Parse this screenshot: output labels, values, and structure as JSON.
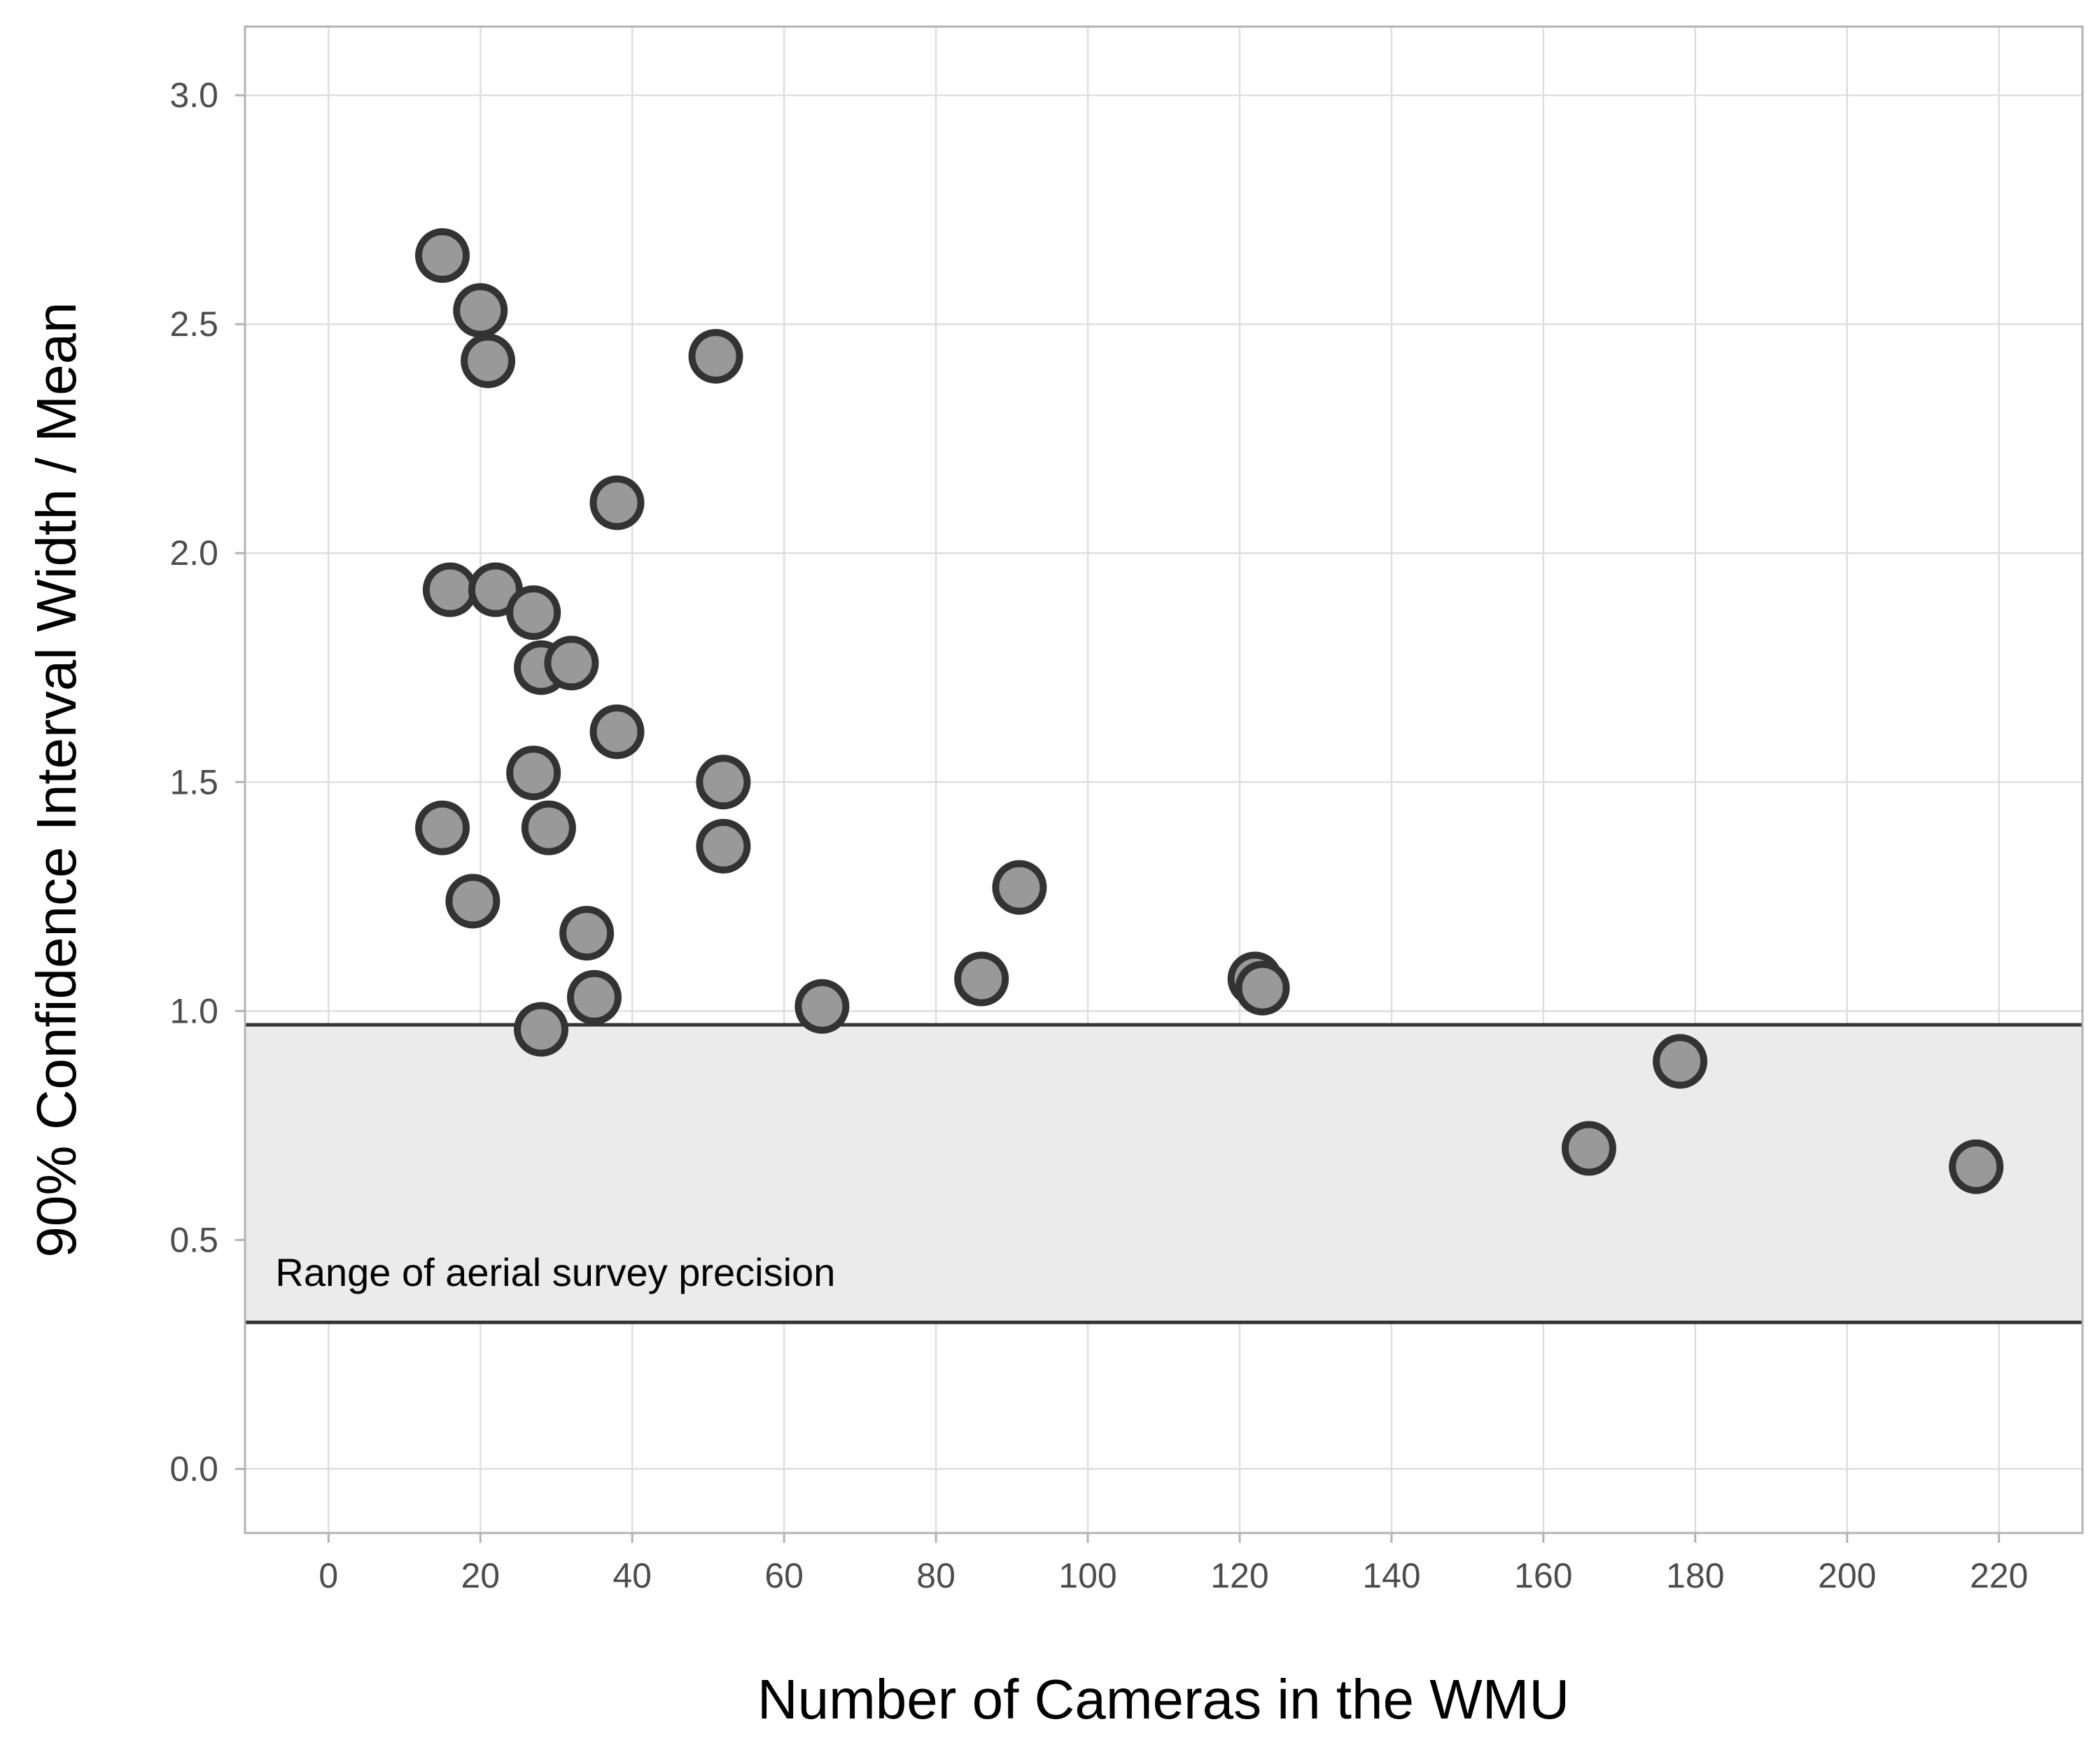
{
  "chart_data": {
    "type": "scatter",
    "xlabel": "Number of Cameras in the WMU",
    "ylabel": "90% Confidence Interval Width / Mean",
    "xlim": [
      -11,
      231
    ],
    "ylim": [
      -0.14,
      3.15
    ],
    "x_ticks": [
      0,
      20,
      40,
      60,
      80,
      100,
      120,
      140,
      160,
      180,
      200,
      220
    ],
    "x_tick_labels": [
      "0",
      "20",
      "40",
      "60",
      "80",
      "100",
      "120",
      "140",
      "160",
      "180",
      "200",
      "220"
    ],
    "y_ticks": [
      0,
      0.5,
      1,
      1.5,
      2,
      2.5,
      3
    ],
    "y_tick_labels": [
      "0.0",
      "0.5",
      "1.0",
      "1.5",
      "2.0",
      "2.5",
      "3.0"
    ],
    "grid": true,
    "band": {
      "label": "Range of aerial survey precision",
      "ymin": 0.32,
      "ymax": 0.97,
      "color": "#ebebeb"
    },
    "colors": {
      "point_fill": "#999999",
      "point_stroke": "#333333",
      "panel_border": "#b3b3b3",
      "grid": "#dedede"
    },
    "points": [
      {
        "x": 15,
        "y": 2.65
      },
      {
        "x": 20,
        "y": 2.53
      },
      {
        "x": 21,
        "y": 2.42
      },
      {
        "x": 51,
        "y": 2.43
      },
      {
        "x": 38,
        "y": 2.11
      },
      {
        "x": 16,
        "y": 1.92
      },
      {
        "x": 22,
        "y": 1.92
      },
      {
        "x": 27,
        "y": 1.87
      },
      {
        "x": 28,
        "y": 1.75
      },
      {
        "x": 32,
        "y": 1.76
      },
      {
        "x": 38,
        "y": 1.61
      },
      {
        "x": 27,
        "y": 1.52
      },
      {
        "x": 52,
        "y": 1.5
      },
      {
        "x": 15,
        "y": 1.4
      },
      {
        "x": 29,
        "y": 1.4
      },
      {
        "x": 52,
        "y": 1.36
      },
      {
        "x": 19,
        "y": 1.24
      },
      {
        "x": 34,
        "y": 1.17
      },
      {
        "x": 35,
        "y": 1.03
      },
      {
        "x": 28,
        "y": 0.96
      },
      {
        "x": 65,
        "y": 1.01
      },
      {
        "x": 86,
        "y": 1.07
      },
      {
        "x": 91,
        "y": 1.27
      },
      {
        "x": 122,
        "y": 1.07
      },
      {
        "x": 123,
        "y": 1.05
      },
      {
        "x": 166,
        "y": 0.7
      },
      {
        "x": 178,
        "y": 0.89
      },
      {
        "x": 217,
        "y": 0.66
      }
    ]
  }
}
